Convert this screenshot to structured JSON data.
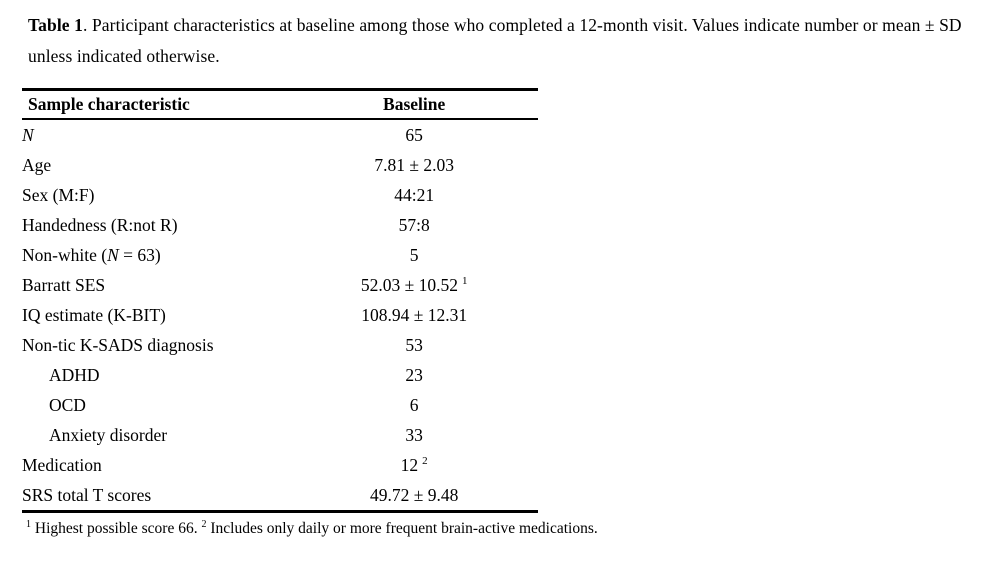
{
  "caption": {
    "label": "Table 1",
    "rest": ". Participant characteristics at baseline among those who completed a 12-month visit. Values indicate number or mean ± SD unless indicated otherwise."
  },
  "table": {
    "col_headers": {
      "characteristic": "Sample characteristic",
      "baseline": "Baseline"
    },
    "rows": [
      {
        "label_it": "N",
        "value": "65"
      },
      {
        "label": "Age",
        "value": "7.81 ± 2.03"
      },
      {
        "label": "Sex (M:F)",
        "value": "44:21"
      },
      {
        "label": "Handedness (R:not R)",
        "value": "57:8"
      },
      {
        "label_pre": "Non-white (",
        "label_it": "N",
        "label_post": " = 63)",
        "value": "5"
      },
      {
        "label": "Barratt SES",
        "value": "52.03 ± 10.52",
        "value_sup": "1"
      },
      {
        "label": "IQ estimate (K-BIT)",
        "value": "108.94 ± 12.31"
      },
      {
        "label": "Non-tic K-SADS diagnosis",
        "value": "53"
      },
      {
        "label": "ADHD",
        "value": "23",
        "indent": true
      },
      {
        "label": "OCD",
        "value": "6",
        "indent": true
      },
      {
        "label": "Anxiety disorder",
        "value": "33",
        "indent": true
      },
      {
        "label": "Medication",
        "value": "12",
        "value_sup": "2"
      },
      {
        "label": "SRS total T scores",
        "value": "49.72 ± 9.48"
      }
    ]
  },
  "footnote": {
    "sup1": "1",
    "text1": " Highest possible score 66. ",
    "sup2": "2",
    "text2": " Includes only daily or more frequent brain-active medications."
  },
  "colors": {
    "background": "#ffffff",
    "text": "#000000",
    "rule": "#000000"
  }
}
